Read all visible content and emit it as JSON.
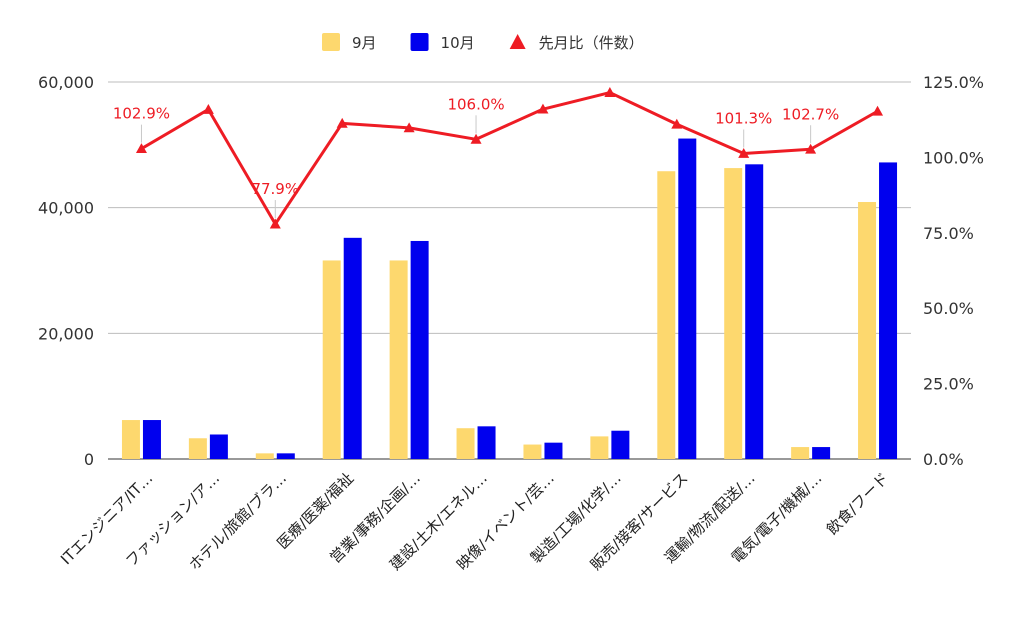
{
  "chart_data": {
    "type": "bar",
    "categories": [
      "ITエンジニア/IT…",
      "ファッション/ア…",
      "ホテル/旅館/ブラ…",
      "医療/医薬/福祉",
      "営業/事務/企画/…",
      "建設/土木/エネル…",
      "映像/イベント/芸…",
      "製造/工場/化学/…",
      "販売/接客/サービス",
      "運輸/物流/配送/…",
      "電気/電子/機械/…",
      "飲食/フード"
    ],
    "series": [
      {
        "name": "9月",
        "kind": "bar",
        "axis": "left",
        "color": "#fdd86e",
        "values": [
          6200,
          3300,
          900,
          31600,
          31600,
          4900,
          2300,
          3600,
          45800,
          46300,
          1900,
          40900
        ]
      },
      {
        "name": "10月",
        "kind": "bar",
        "axis": "left",
        "color": "#0000ee",
        "values": [
          6200,
          3900,
          900,
          35200,
          34700,
          5200,
          2600,
          4500,
          51000,
          46900,
          1900,
          47200
        ]
      },
      {
        "name": "先月比（件数）",
        "kind": "line",
        "axis": "right",
        "color": "#ee1c24",
        "values": [
          102.9,
          115.9,
          77.9,
          111.3,
          109.8,
          106.0,
          116.0,
          121.5,
          111.0,
          101.3,
          102.7,
          115.3
        ]
      }
    ],
    "data_labels": [
      {
        "index": 0,
        "text": "102.9%"
      },
      {
        "index": 2,
        "text": "77.9%"
      },
      {
        "index": 5,
        "text": "106.0%"
      },
      {
        "index": 9,
        "text": "101.3%"
      },
      {
        "index": 10,
        "text": "102.7%"
      }
    ],
    "y_left": {
      "ylim": [
        0,
        60000
      ],
      "ticks": [
        0,
        20000,
        40000,
        60000
      ],
      "tick_labels": [
        "0",
        "20,000",
        "40,000",
        "60,000"
      ]
    },
    "y_right": {
      "ylim": [
        0,
        125
      ],
      "ticks": [
        0,
        25,
        50,
        75,
        100,
        125
      ],
      "tick_labels": [
        "0.0%",
        "25.0%",
        "50.0%",
        "75.0%",
        "100.0%",
        "125.0%"
      ]
    },
    "title": "",
    "xlabel": "",
    "ylabel": "",
    "grid": true,
    "legend_position": "top"
  }
}
